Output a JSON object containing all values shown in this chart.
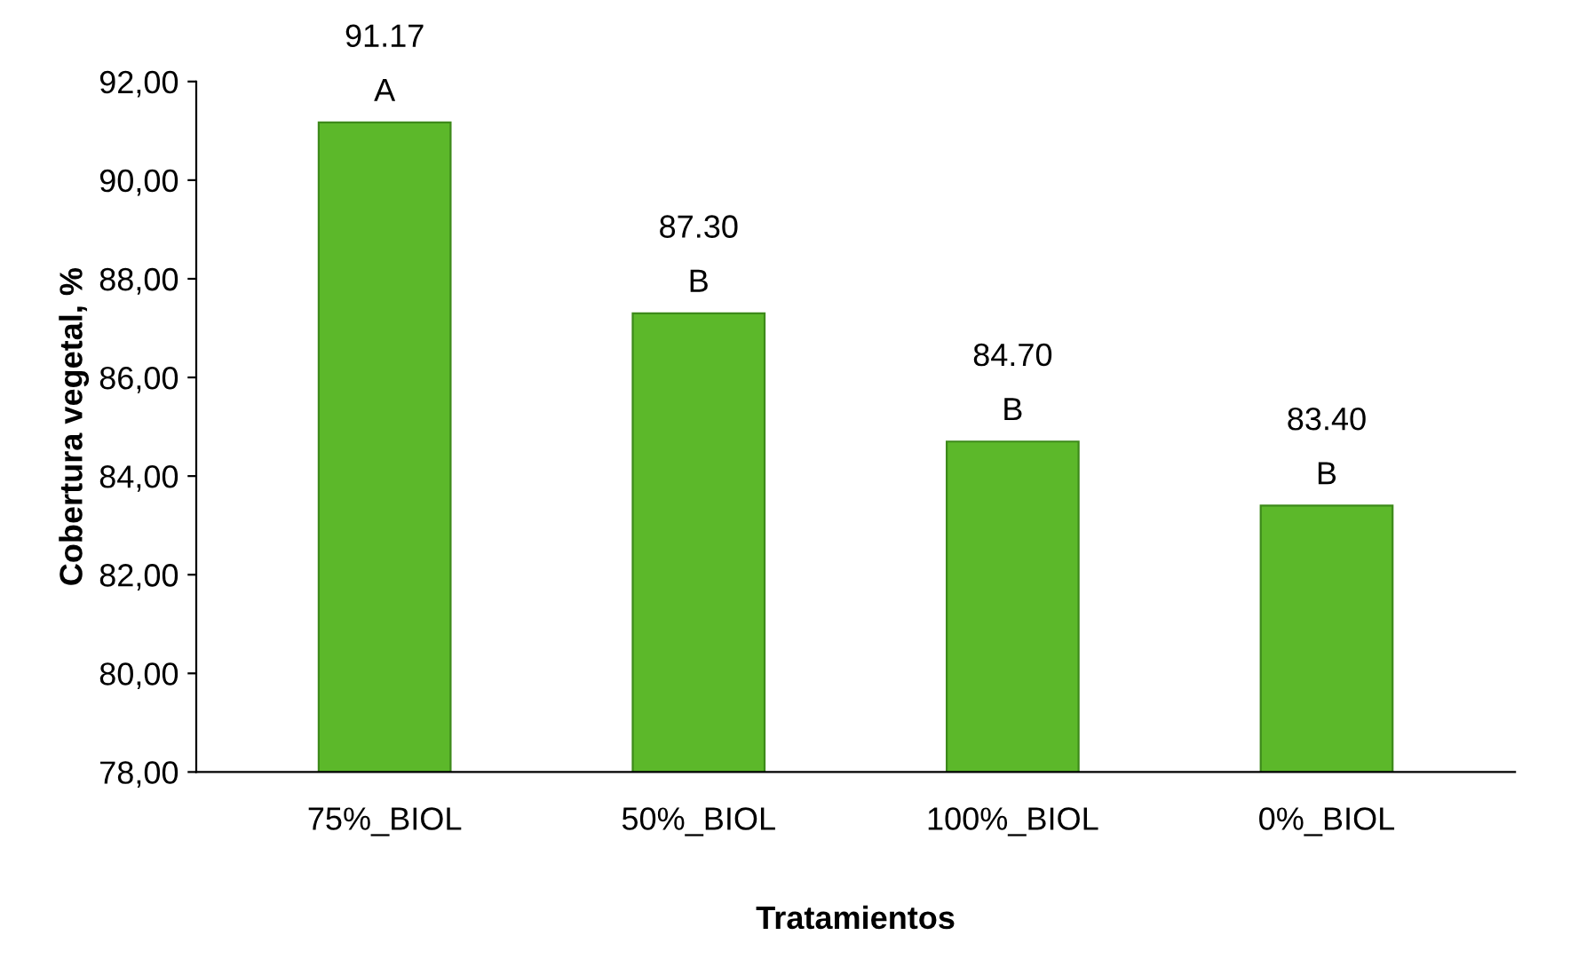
{
  "chart_data": {
    "type": "bar",
    "xlabel": "Tratamientos",
    "ylabel": "Cobertura vegetal, %",
    "categories": [
      "75%_BIOL",
      "50%_BIOL",
      "100%_BIOL",
      "0%_BIOL"
    ],
    "values": [
      91.17,
      87.3,
      84.7,
      83.4
    ],
    "color": "#5cb82a",
    "value_labels": [
      "91.17",
      "87.30",
      "84.70",
      "83.40"
    ],
    "annotations": [
      {
        "text": "A",
        "x": "75%_BIOL",
        "y": 91.17
      },
      {
        "text": "B",
        "x": "50%_BIOL",
        "y": 87.3
      },
      {
        "text": "B",
        "x": "100%_BIOL",
        "y": 84.7
      },
      {
        "text": "B",
        "x": "0%_BIOL",
        "y": 83.4
      }
    ],
    "ylim": [
      78,
      92
    ],
    "yticks": [
      {
        "value": 78,
        "label": "78,00"
      },
      {
        "value": 80,
        "label": "80,00"
      },
      {
        "value": 82,
        "label": "82,00"
      },
      {
        "value": 84,
        "label": "84,00"
      },
      {
        "value": 86,
        "label": "86,00"
      },
      {
        "value": 88,
        "label": "88,00"
      },
      {
        "value": 90,
        "label": "90,00"
      },
      {
        "value": 92,
        "label": "92,00"
      }
    ],
    "grid": false,
    "legend": false
  }
}
